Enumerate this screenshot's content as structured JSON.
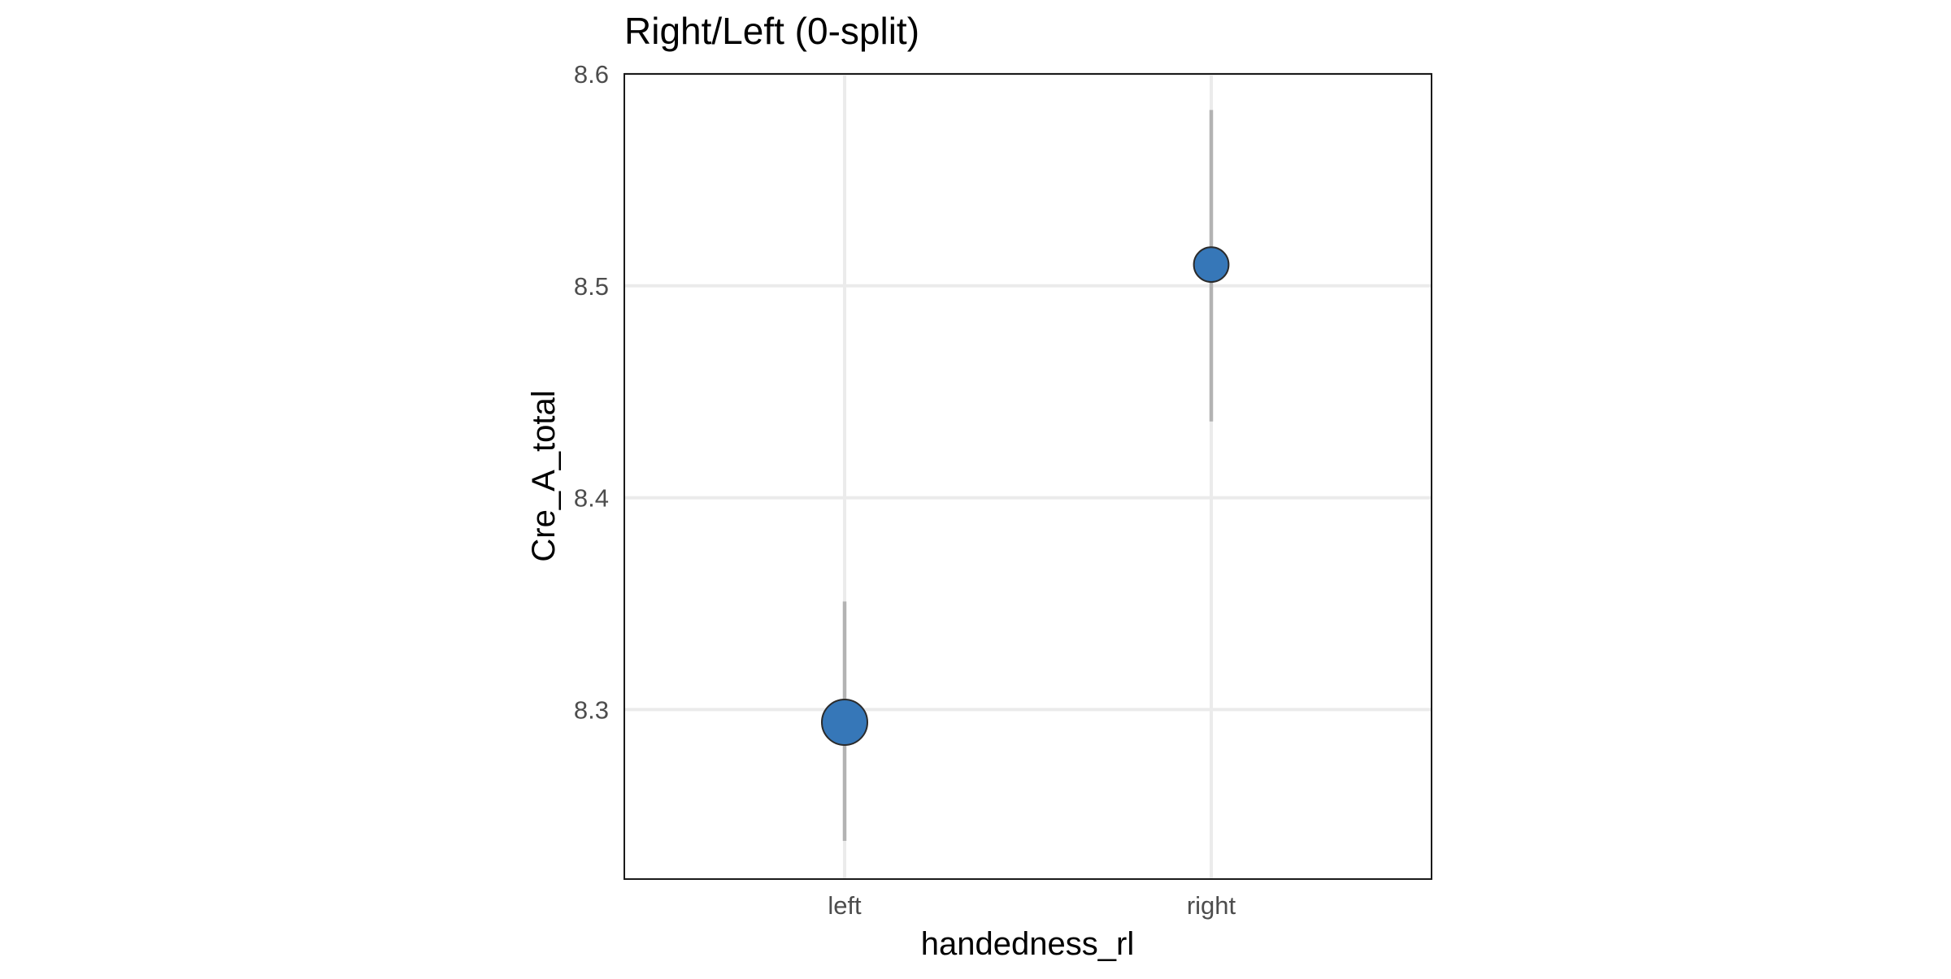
{
  "chart_data": {
    "type": "scatter",
    "title": "Right/Left (0-split)",
    "xlabel": "handedness_rl",
    "ylabel": "Cre_A_total",
    "categories": [
      "left",
      "right"
    ],
    "points": [
      {
        "category": "left",
        "y": 8.294,
        "ci_low": 8.238,
        "ci_high": 8.351,
        "relative_size": 1.0
      },
      {
        "category": "right",
        "y": 8.51,
        "ci_low": 8.436,
        "ci_high": 8.583,
        "relative_size": 0.8
      }
    ],
    "ylim": [
      8.22,
      8.6
    ],
    "yticks": [
      "8.3",
      "8.4",
      "8.5",
      "8.6"
    ],
    "grid": true,
    "legend": "none",
    "colors": {
      "point_fill": "#3677b8",
      "point_stroke": "#2b2b2b",
      "error_bar": "#b3b3b3",
      "grid": "#ebebeb",
      "panel_border": "#1a1a1a"
    }
  }
}
